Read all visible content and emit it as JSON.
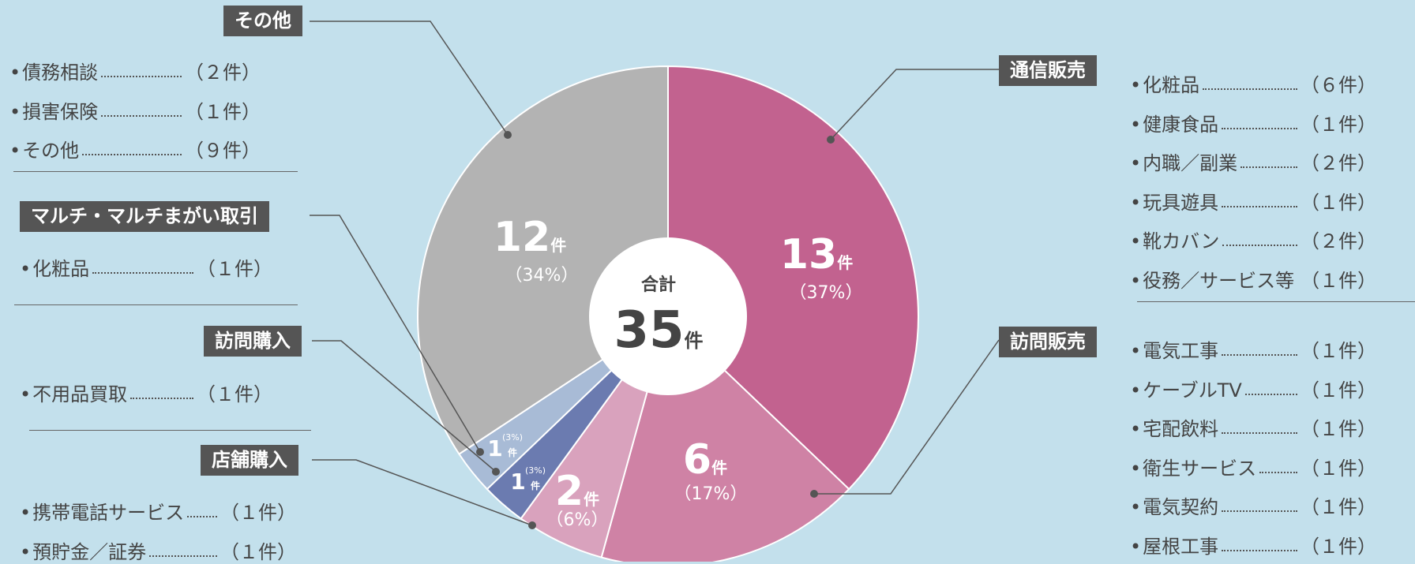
{
  "chart_data": {
    "type": "pie",
    "categories": [
      "通信販売",
      "訪問販売",
      "店舗購入",
      "訪問購入",
      "マルチ・マルチまがい取引",
      "その他"
    ],
    "values": [
      13,
      6,
      2,
      1,
      1,
      12
    ],
    "percent_labels": [
      "（37%）",
      "（17%）",
      "（6%）",
      "(3%)",
      "(3%)",
      "（34%）"
    ],
    "colors": [
      "#c2628f",
      "#cf82a5",
      "#d9a2bd",
      "#6b7bb0",
      "#a8bbd6",
      "#b3b3b3"
    ],
    "unit": "件",
    "center_label": "合計",
    "total": 35,
    "details": [
      [
        {
          "label": "化粧品",
          "count": "（６件）"
        },
        {
          "label": "健康食品",
          "count": "（１件）"
        },
        {
          "label": "内職／副業",
          "count": "（２件）"
        },
        {
          "label": "玩具遊具",
          "count": "（１件）"
        },
        {
          "label": "靴カバン",
          "count": "（２件）"
        },
        {
          "label": "役務／サービス等",
          "count": "（１件）"
        }
      ],
      [
        {
          "label": "電気工事",
          "count": "（１件）"
        },
        {
          "label": "ケーブルTV",
          "count": "（１件）"
        },
        {
          "label": "宅配飲料",
          "count": "（１件）"
        },
        {
          "label": "衛生サービス",
          "count": "（１件）"
        },
        {
          "label": "電気契約",
          "count": "（１件）"
        },
        {
          "label": "屋根工事",
          "count": "（１件）"
        }
      ],
      [
        {
          "label": "携帯電話サービス",
          "count": "（１件）"
        },
        {
          "label": "預貯金／証券",
          "count": "（１件）"
        }
      ],
      [
        {
          "label": "不用品買取",
          "count": "（１件）"
        }
      ],
      [
        {
          "label": "化粧品",
          "count": "（１件）"
        }
      ],
      [
        {
          "label": "債務相談",
          "count": "（２件）"
        },
        {
          "label": "損害保険",
          "count": "（１件）"
        },
        {
          "label": "その他",
          "count": "（９件）"
        }
      ]
    ]
  }
}
